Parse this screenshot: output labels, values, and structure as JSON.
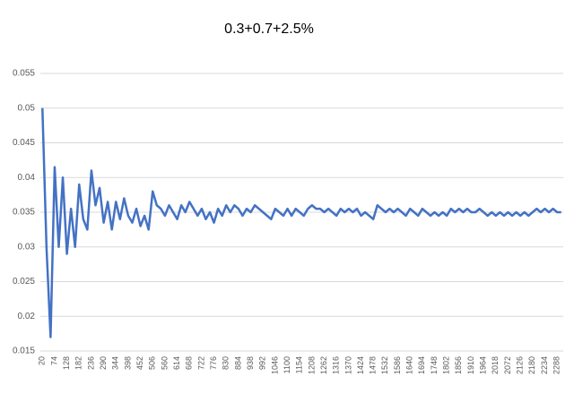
{
  "chart_data": {
    "type": "line",
    "title": "0.3+0.7+2.5%",
    "categories": [
      20,
      null,
      null,
      74,
      null,
      null,
      128,
      null,
      null,
      182,
      null,
      null,
      236,
      null,
      null,
      290,
      null,
      null,
      344,
      null,
      null,
      398,
      null,
      null,
      452,
      null,
      null,
      506,
      null,
      null,
      560,
      null,
      null,
      614,
      null,
      null,
      668,
      null,
      null,
      722,
      null,
      null,
      776,
      null,
      null,
      830,
      null,
      null,
      884,
      null,
      null,
      938,
      null,
      null,
      992,
      null,
      null,
      1046,
      null,
      null,
      1100,
      null,
      null,
      1154,
      null,
      null,
      1208,
      null,
      null,
      1262,
      null,
      null,
      1316,
      null,
      null,
      1370,
      null,
      null,
      1424,
      null,
      null,
      1478,
      null,
      null,
      1532,
      null,
      null,
      1586,
      null,
      null,
      1640,
      null,
      null,
      1694,
      null,
      null,
      1748,
      null,
      null,
      1802,
      null,
      null,
      1856,
      null,
      null,
      1910,
      null,
      null,
      1964,
      null,
      null,
      2018,
      null,
      null,
      2072,
      null,
      null,
      2126,
      null,
      null,
      2180,
      null,
      null,
      2234,
      null,
      null,
      2288,
      null
    ],
    "values": [
      0.05,
      0.03,
      0.017,
      0.0415,
      0.03,
      0.04,
      0.029,
      0.0355,
      0.03,
      0.039,
      0.034,
      0.0325,
      0.041,
      0.036,
      0.0385,
      0.0335,
      0.0365,
      0.0325,
      0.0365,
      0.034,
      0.037,
      0.0345,
      0.0335,
      0.0355,
      0.033,
      0.0345,
      0.0325,
      0.038,
      0.036,
      0.0355,
      0.0345,
      0.036,
      0.035,
      0.034,
      0.036,
      0.035,
      0.0365,
      0.0355,
      0.0345,
      0.0355,
      0.034,
      0.035,
      0.0335,
      0.0355,
      0.0345,
      0.036,
      0.035,
      0.036,
      0.0355,
      0.0345,
      0.0355,
      0.035,
      0.036,
      0.0355,
      0.035,
      0.0345,
      0.034,
      0.0355,
      0.035,
      0.0345,
      0.0355,
      0.0345,
      0.0355,
      0.035,
      0.0345,
      0.0355,
      0.036,
      0.0355,
      0.0355,
      0.035,
      0.0355,
      0.035,
      0.0345,
      0.0355,
      0.035,
      0.0355,
      0.035,
      0.0355,
      0.0345,
      0.035,
      0.0345,
      0.034,
      0.036,
      0.0355,
      0.035,
      0.0355,
      0.035,
      0.0355,
      0.035,
      0.0345,
      0.0355,
      0.035,
      0.0345,
      0.0355,
      0.035,
      0.0345,
      0.035,
      0.0345,
      0.035,
      0.0345,
      0.0355,
      0.035,
      0.0355,
      0.035,
      0.0355,
      0.035,
      0.035,
      0.0355,
      0.035,
      0.0345,
      0.035,
      0.0345,
      0.035,
      0.0345,
      0.035,
      0.0345,
      0.035,
      0.0345,
      0.035,
      0.0345,
      0.035,
      0.0355,
      0.035,
      0.0355,
      0.035,
      0.0355,
      0.035,
      0.035
    ],
    "color": "#4472c4",
    "ylim": [
      0.015,
      0.055
    ],
    "yticks": [
      0.015,
      0.02,
      0.025,
      0.03,
      0.035,
      0.04,
      0.045,
      0.05,
      0.055
    ],
    "grid": true
  }
}
